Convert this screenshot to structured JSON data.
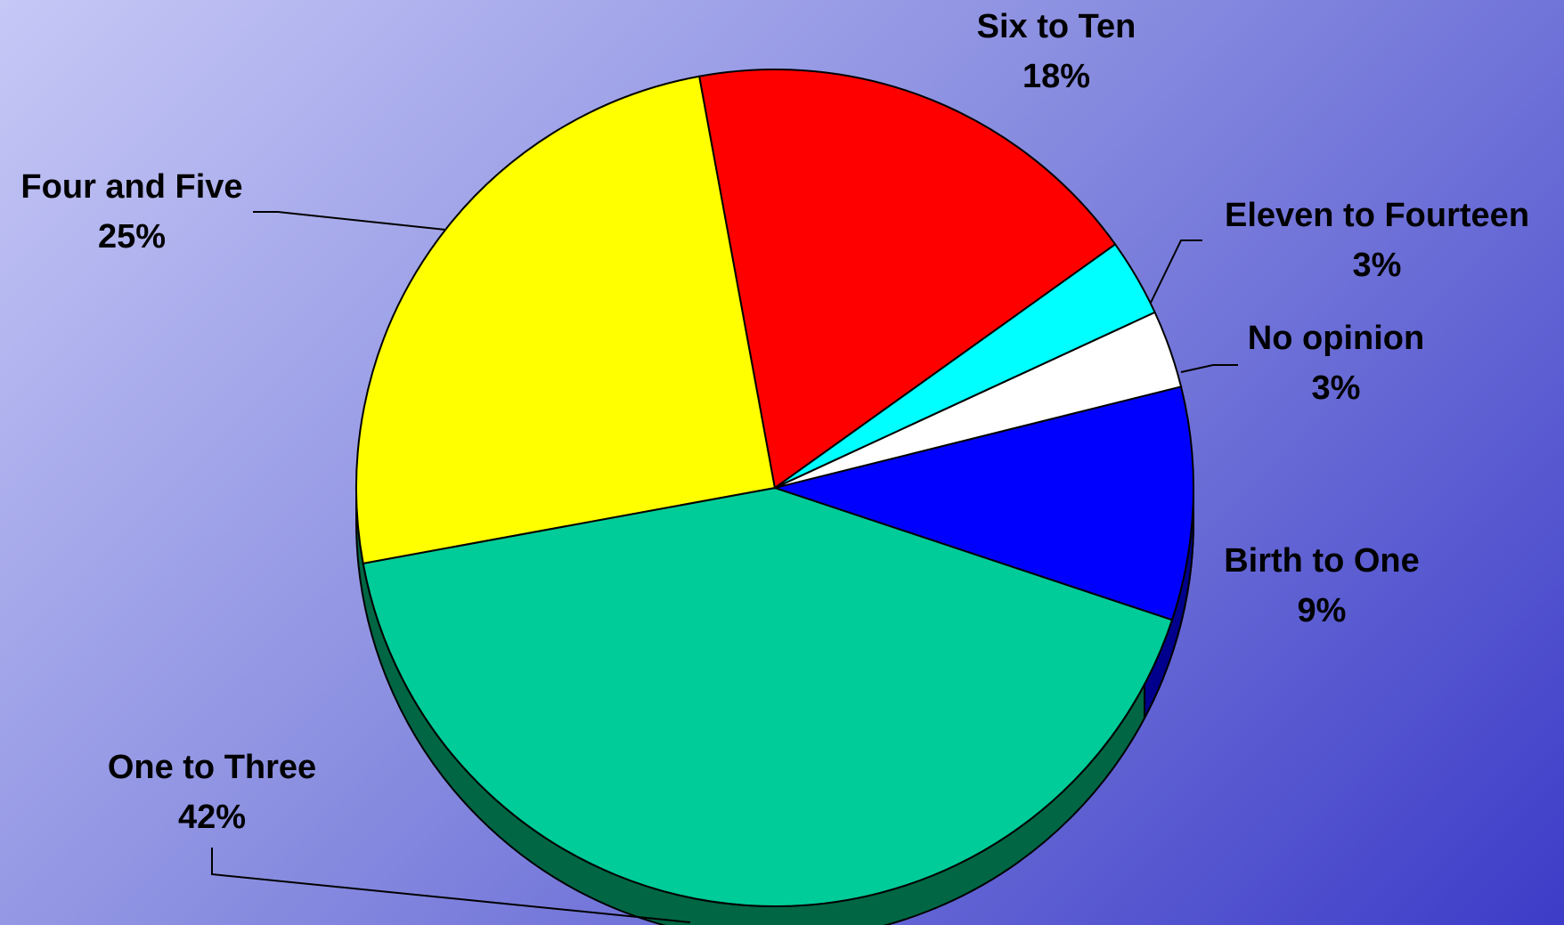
{
  "colors": {
    "bg_start": "#c6c8f6",
    "bg_end": "#3c3cc8",
    "edge_dark": "#006644",
    "edge_blue": "#00008c"
  },
  "chart_data": {
    "type": "pie",
    "title": "",
    "start_category": "Birth to One",
    "direction": "clockwise",
    "slices": [
      {
        "label": "Birth to One",
        "value": 9,
        "pct_label": "9%",
        "color": "#0000ff"
      },
      {
        "label": "One to Three",
        "value": 42,
        "pct_label": "42%",
        "color": "#00cc99"
      },
      {
        "label": "Four and Five",
        "value": 25,
        "pct_label": "25%",
        "color": "#ffff00"
      },
      {
        "label": "Six to Ten",
        "value": 18,
        "pct_label": "18%",
        "color": "#ff0000"
      },
      {
        "label": "Eleven to Fourteen",
        "value": 3,
        "pct_label": "3%",
        "color": "#00ffff"
      },
      {
        "label": "No opinion",
        "value": 3,
        "pct_label": "3%",
        "color": "#ffffff"
      }
    ]
  }
}
